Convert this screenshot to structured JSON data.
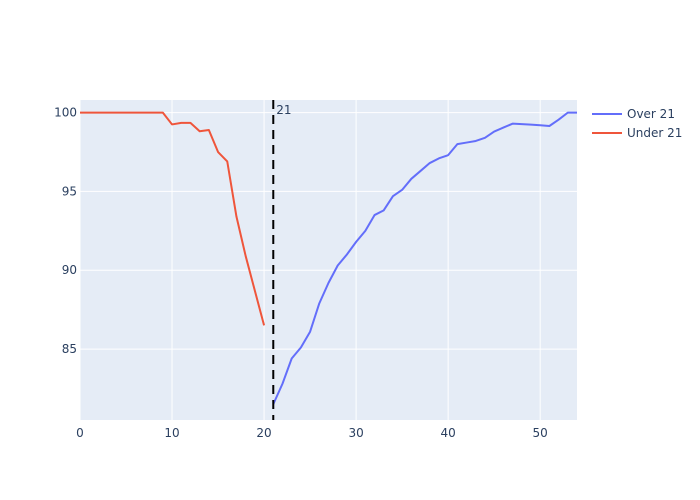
{
  "chart_data": {
    "type": "line",
    "title": "",
    "xlabel": "",
    "ylabel": "",
    "xlim": [
      0,
      54
    ],
    "ylim": [
      80.5,
      100.8
    ],
    "x_ticks": [
      0,
      10,
      20,
      30,
      40,
      50
    ],
    "y_ticks": [
      85,
      90,
      95,
      100
    ],
    "grid": true,
    "legend_position": "top-right",
    "vline": {
      "x": 21,
      "label": "21",
      "color": "#000000",
      "style": "dashed"
    },
    "series": [
      {
        "name": "Over 21",
        "color": "#636efa",
        "x": [
          21,
          22,
          23,
          24,
          25,
          26,
          27,
          28,
          29,
          30,
          31,
          32,
          33,
          34,
          35,
          36,
          37,
          38,
          39,
          40,
          41,
          42,
          43,
          44,
          45,
          46,
          47,
          48,
          49,
          50,
          51,
          52,
          53,
          54
        ],
        "y": [
          81.5,
          82.8,
          84.4,
          85.1,
          86.1,
          87.9,
          89.2,
          90.3,
          91.0,
          91.8,
          92.5,
          93.5,
          93.8,
          94.7,
          95.1,
          95.8,
          96.3,
          96.8,
          97.1,
          97.3,
          98.0,
          98.1,
          98.2,
          98.4,
          98.8,
          99.05,
          99.3,
          99.27,
          99.24,
          99.2,
          99.15,
          99.55,
          100.0,
          100.0
        ]
      },
      {
        "name": "Under 21",
        "color": "#ef553b",
        "x": [
          0,
          1,
          2,
          3,
          4,
          5,
          6,
          7,
          8,
          9,
          10,
          11,
          12,
          13,
          14,
          15,
          16,
          17,
          18,
          19,
          20
        ],
        "y": [
          100,
          100,
          100,
          100,
          100,
          100,
          100,
          100,
          100,
          100,
          99.25,
          99.35,
          99.35,
          98.82,
          98.9,
          97.5,
          96.9,
          93.4,
          90.9,
          88.7,
          86.5
        ]
      }
    ]
  }
}
